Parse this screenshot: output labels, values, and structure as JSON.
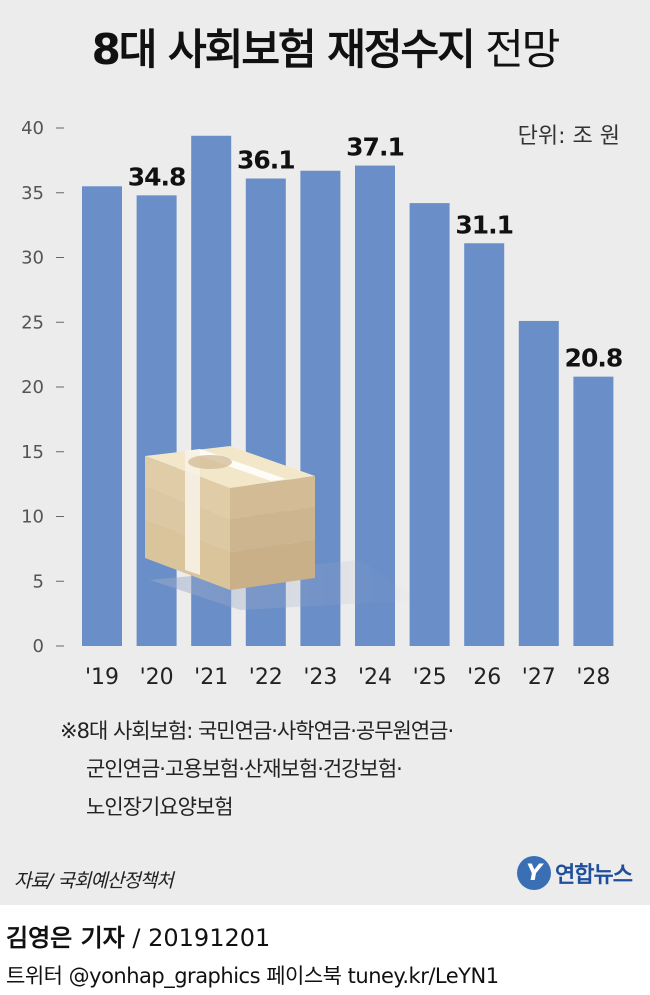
{
  "title": {
    "bold": "8대 사회보험 재정수지",
    "light": "전망"
  },
  "unit": "단위: 조 원",
  "chart_data": {
    "type": "bar",
    "categories": [
      "'19",
      "'20",
      "'21",
      "'22",
      "'23",
      "'24",
      "'25",
      "'26",
      "'27",
      "'28"
    ],
    "values": [
      35.5,
      34.8,
      39.4,
      36.1,
      36.7,
      37.1,
      34.2,
      31.1,
      25.1,
      20.8
    ],
    "labels": [
      "",
      "34.8",
      "",
      "36.1",
      "",
      "37.1",
      "",
      "31.1",
      "",
      "20.8"
    ],
    "yticks": [
      0,
      5,
      10,
      15,
      20,
      25,
      30,
      35,
      40
    ],
    "ylim": [
      0,
      40
    ],
    "bar_color": "#6a8ec8",
    "grid": false
  },
  "note": {
    "line1": "※8대 사회보험: 국민연금·사학연금·공무원연금·",
    "line2": "군인연금·고용보험·산재보험·건강보험·",
    "line3": "노인장기요양보험"
  },
  "source": "자료/ 국회예산정책처",
  "logo": {
    "mark": "Y",
    "text": "연합뉴스"
  },
  "reporter": {
    "name": "김영은 기자",
    "date": " / 20191201"
  },
  "social": "트위터 @yonhap_graphics  페이스북 tuney.kr/LeYN1"
}
